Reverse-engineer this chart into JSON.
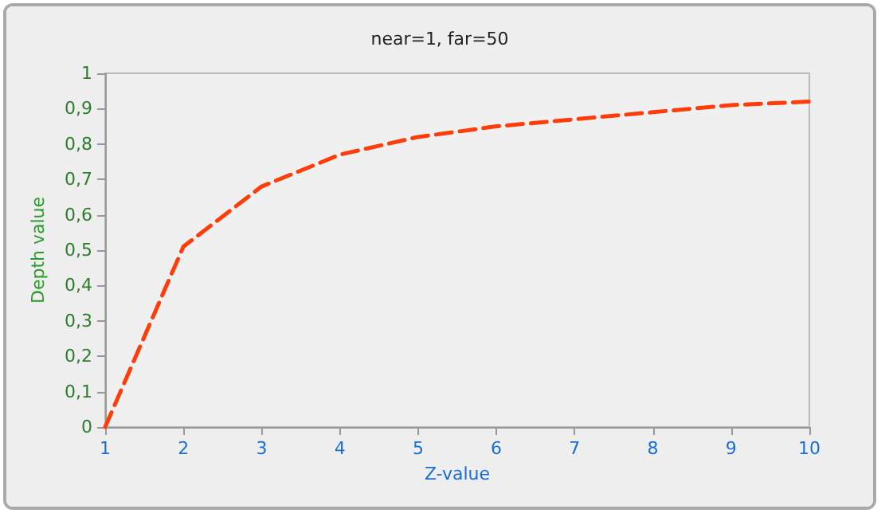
{
  "chart_data": {
    "type": "line",
    "title": "near=1, far=50",
    "xlabel": "Z-value",
    "ylabel": "Depth value",
    "x": [
      1,
      2,
      3,
      4,
      5,
      6,
      7,
      8,
      9,
      10
    ],
    "series": [
      {
        "color": "#ff3c0a",
        "values": [
          0,
          0.51,
          0.68,
          0.77,
          0.82,
          0.85,
          0.87,
          0.89,
          0.91,
          0.92
        ]
      }
    ],
    "xlim": [
      1,
      10
    ],
    "xticks": [
      1,
      2,
      3,
      4,
      5,
      6,
      7,
      8,
      9,
      10
    ],
    "ylim": [
      0,
      1
    ],
    "yticks": [
      0,
      {
        "value": 0.1,
        "label": "0,1"
      },
      {
        "value": 0.2,
        "label": "0,2"
      },
      {
        "value": 0.3,
        "label": "0,3"
      },
      {
        "value": 0.4,
        "label": "0,4"
      },
      {
        "value": 0.5,
        "label": "0,5"
      },
      {
        "value": 0.6,
        "label": "0,6"
      },
      {
        "value": 0.7,
        "label": "0,7"
      },
      {
        "value": 0.8,
        "label": "0,8"
      },
      {
        "value": 0.9,
        "label": "0,9"
      },
      1
    ],
    "grid": false,
    "marker": "none",
    "line_style": "dashed"
  }
}
